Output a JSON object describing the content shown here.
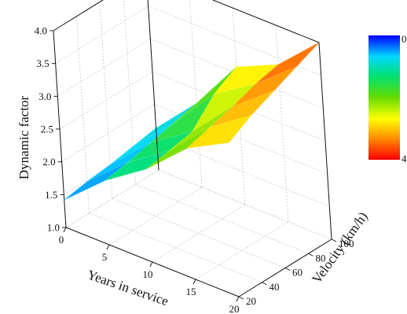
{
  "chart_data": {
    "type": "surface",
    "zlabel": "Dynamic factor",
    "xlabel": "Years in service",
    "ylabel": "Velocity (km/h)",
    "x": [
      0,
      5,
      10,
      15,
      20
    ],
    "y": [
      20,
      40,
      60,
      80,
      100
    ],
    "xlim": [
      0,
      20
    ],
    "ylim": [
      20,
      100
    ],
    "zlim": [
      1.0,
      4.0
    ],
    "x_ticks": [
      "0",
      "5",
      "10",
      "15",
      "20"
    ],
    "y_ticks": [
      "20",
      "40",
      "60",
      "80",
      "100"
    ],
    "z_ticks": [
      "1.0",
      "1.5",
      "2.0",
      "2.5",
      "3.0",
      "3.5",
      "4.0"
    ],
    "colorbar_labels": [
      "0",
      "4"
    ],
    "colormap": [
      "#0000ff",
      "#00d8ff",
      "#00e070",
      "#66dd00",
      "#ffff00",
      "#ff8c00",
      "#ff0000"
    ],
    "z": [
      [
        1.42,
        1.48,
        1.52,
        1.58,
        1.64
      ],
      [
        1.98,
        2.04,
        2.12,
        2.2,
        2.28
      ],
      [
        2.42,
        2.48,
        2.55,
        2.9,
        3.1
      ],
      [
        3.0,
        3.1,
        3.2,
        3.32,
        3.4
      ],
      [
        3.35,
        3.55,
        3.7,
        3.85,
        4.0
      ]
    ],
    "grid": true
  }
}
